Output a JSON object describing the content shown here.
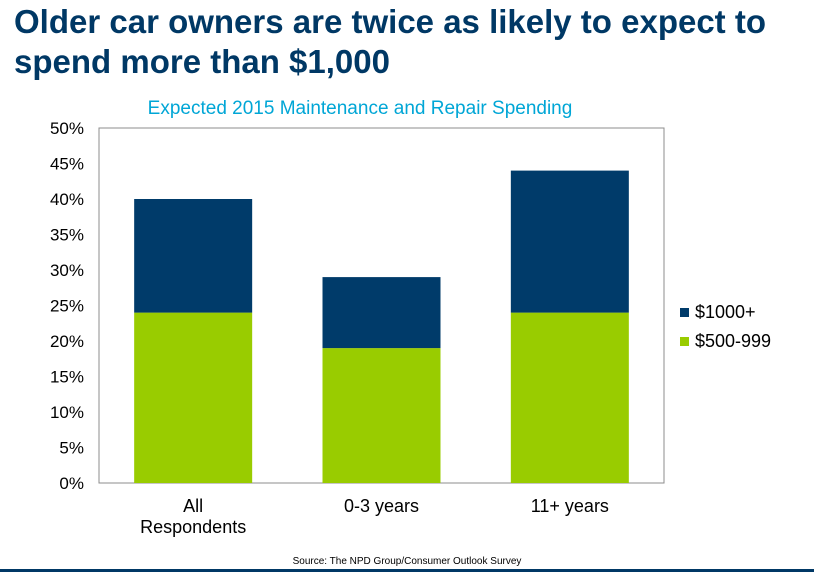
{
  "headline": "Older car owners are twice as likely to expect to spend more than $1,000",
  "source": "Source: The NPD Group/Consumer Outlook Survey",
  "colors": {
    "headline": "#003865",
    "chart_title": "#00a6d6",
    "over_1000": "#003b6a",
    "500_999": "#99cc00"
  },
  "chart_data": {
    "type": "bar",
    "stacked": true,
    "title": "Expected 2015 Maintenance and Repair Spending",
    "categories": [
      [
        "All",
        "Respondents"
      ],
      [
        "0-3 years"
      ],
      [
        "11+ years"
      ]
    ],
    "series": [
      {
        "name": "$500-999",
        "values": [
          24,
          19,
          24
        ],
        "color": "#99cc00"
      },
      {
        "name": "$1000+",
        "values": [
          16,
          10,
          20
        ],
        "color": "#003b6a"
      }
    ],
    "ylim": [
      0,
      50
    ],
    "yticks": [
      "0%",
      "5%",
      "10%",
      "15%",
      "20%",
      "25%",
      "30%",
      "35%",
      "40%",
      "45%",
      "50%"
    ],
    "legend": [
      "$1000+",
      "$500-999"
    ],
    "legend_position": "right",
    "grid": false
  }
}
